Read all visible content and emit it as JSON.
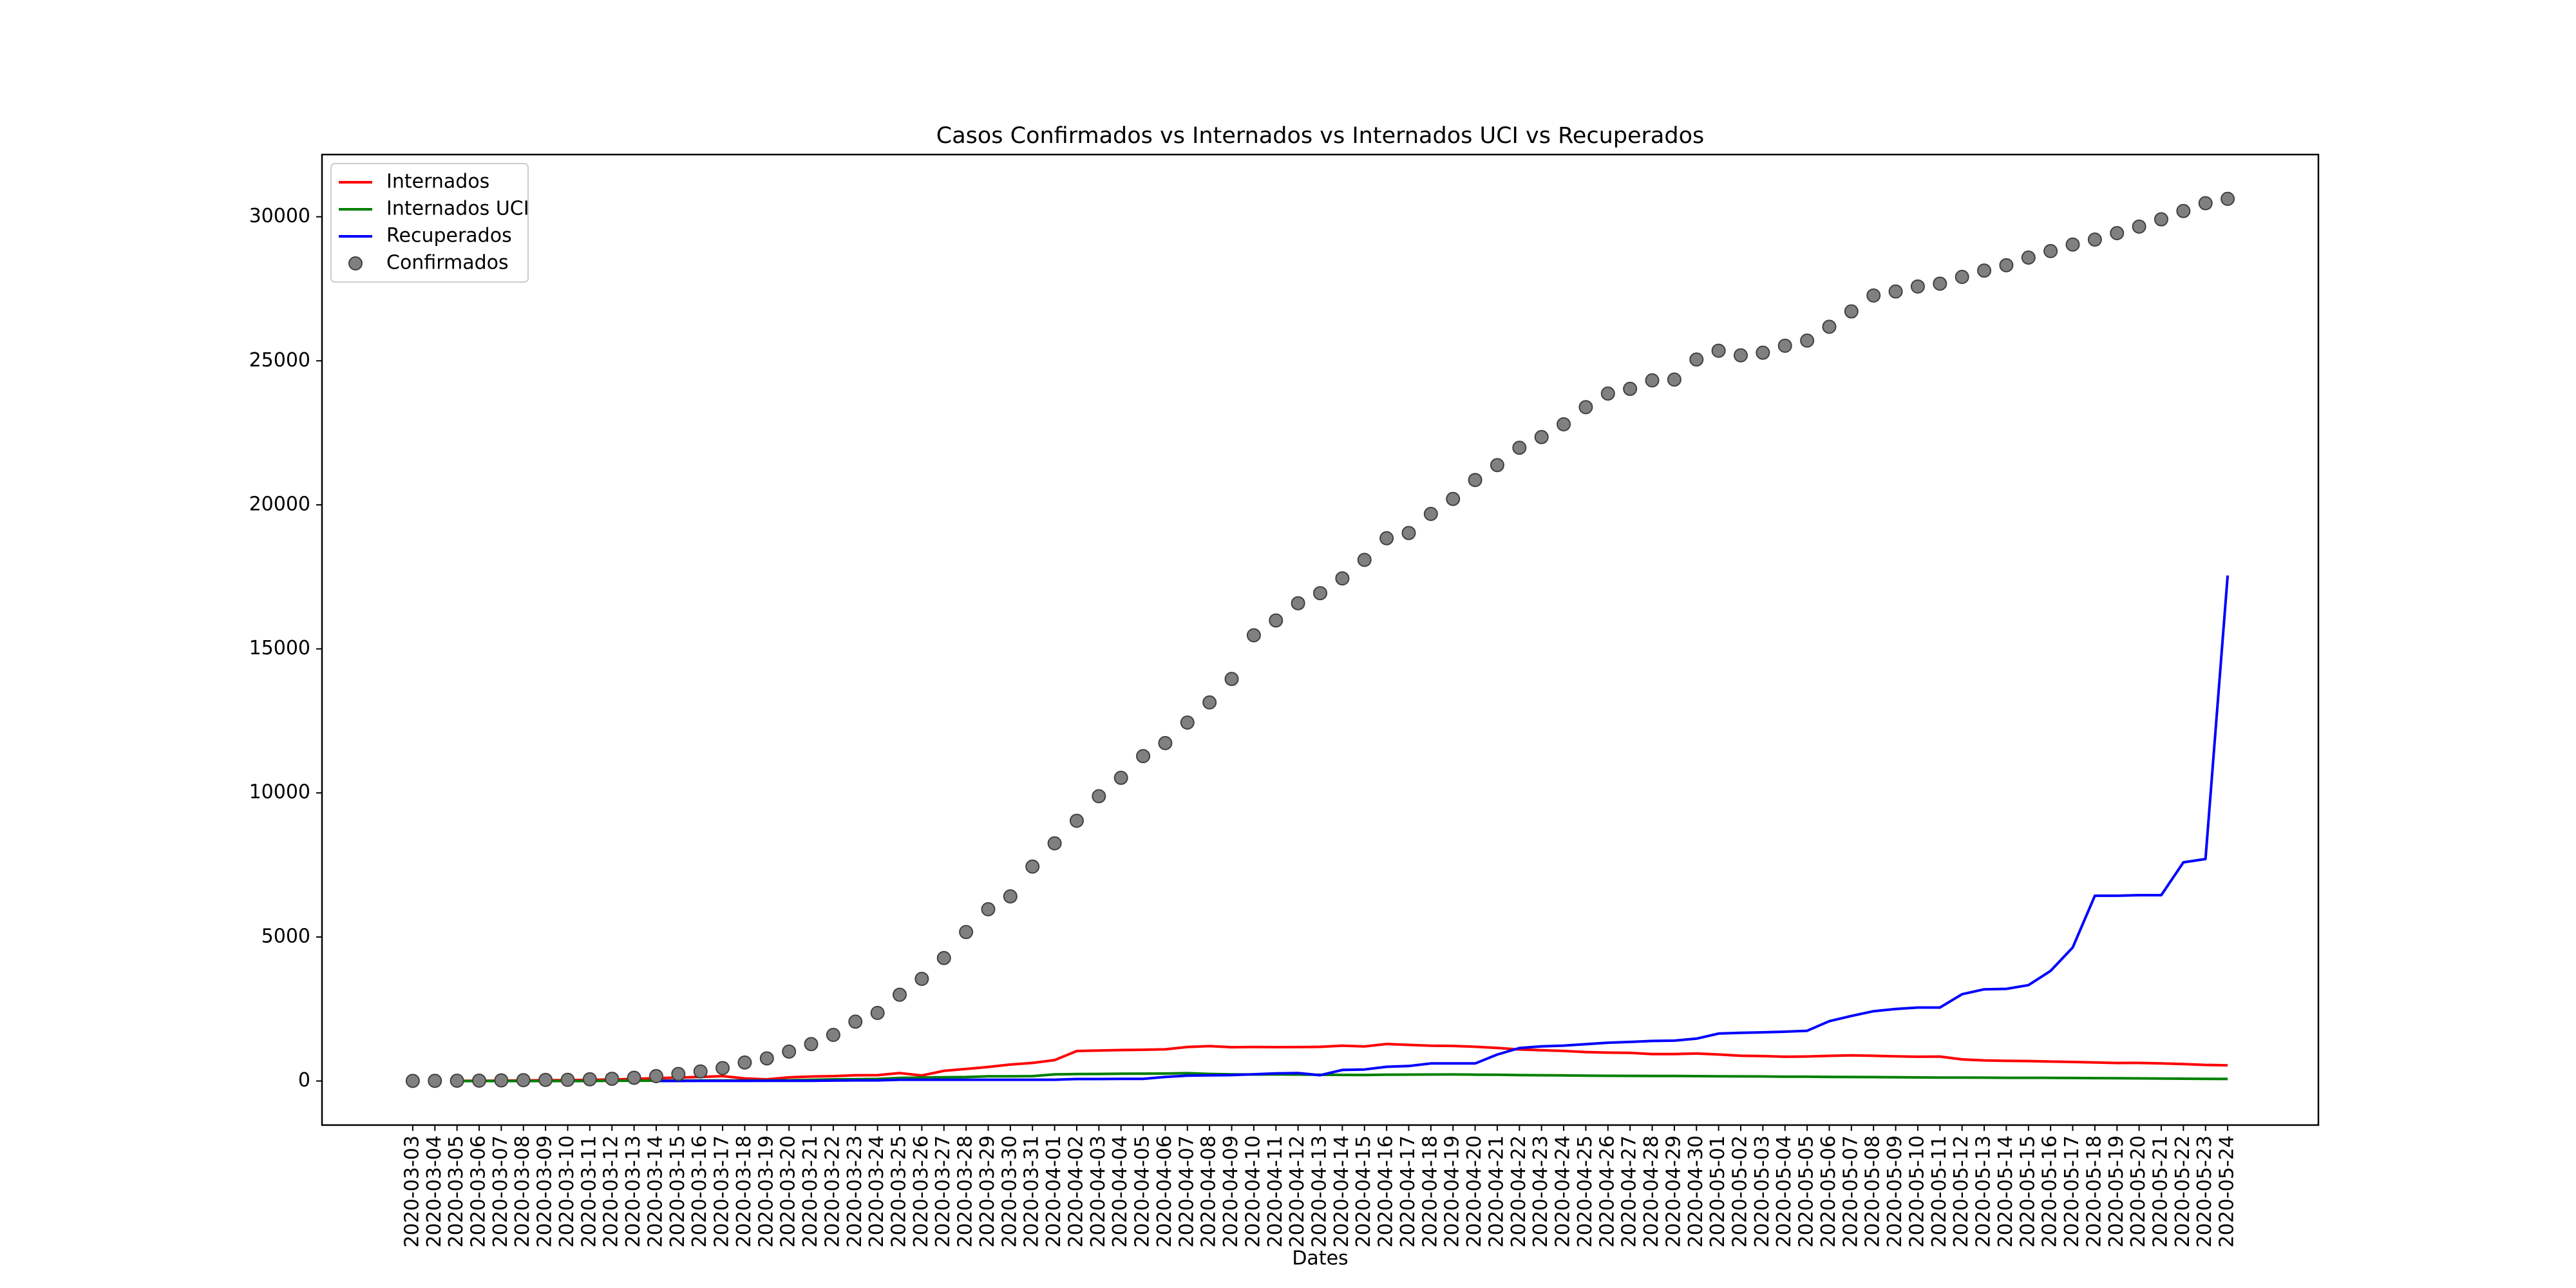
{
  "chart_data": {
    "type": "line",
    "title": "Casos Confirmados vs Internados  vs Internados UCI vs Recuperados",
    "x_label": "Dates",
    "categories": [
      "2020-03-03",
      "2020-03-04",
      "2020-03-05",
      "2020-03-06",
      "2020-03-07",
      "2020-03-08",
      "2020-03-09",
      "2020-03-10",
      "2020-03-11",
      "2020-03-12",
      "2020-03-13",
      "2020-03-14",
      "2020-03-15",
      "2020-03-16",
      "2020-03-17",
      "2020-03-18",
      "2020-03-19",
      "2020-03-20",
      "2020-03-21",
      "2020-03-22",
      "2020-03-23",
      "2020-03-24",
      "2020-03-25",
      "2020-03-26",
      "2020-03-27",
      "2020-03-28",
      "2020-03-29",
      "2020-03-30",
      "2020-03-31",
      "2020-04-01",
      "2020-04-02",
      "2020-04-03",
      "2020-04-04",
      "2020-04-05",
      "2020-04-06",
      "2020-04-07",
      "2020-04-08",
      "2020-04-09",
      "2020-04-10",
      "2020-04-11",
      "2020-04-12",
      "2020-04-13",
      "2020-04-14",
      "2020-04-15",
      "2020-04-16",
      "2020-04-17",
      "2020-04-18",
      "2020-04-19",
      "2020-04-20",
      "2020-04-21",
      "2020-04-22",
      "2020-04-23",
      "2020-04-24",
      "2020-04-25",
      "2020-04-26",
      "2020-04-27",
      "2020-04-28",
      "2020-04-29",
      "2020-04-30",
      "2020-05-01",
      "2020-05-02",
      "2020-05-03",
      "2020-05-04",
      "2020-05-05",
      "2020-05-06",
      "2020-05-07",
      "2020-05-08",
      "2020-05-09",
      "2020-05-10",
      "2020-05-11",
      "2020-05-12",
      "2020-05-13",
      "2020-05-14",
      "2020-05-15",
      "2020-05-16",
      "2020-05-17",
      "2020-05-18",
      "2020-05-19",
      "2020-05-20",
      "2020-05-21",
      "2020-05-22",
      "2020-05-23",
      "2020-05-24"
    ],
    "series": [
      {
        "name": "Internados",
        "color": "#ff0000",
        "kind": "line",
        "values": [
          null,
          null,
          5,
          8,
          13,
          20,
          25,
          30,
          40,
          50,
          70,
          100,
          120,
          140,
          170,
          89,
          58,
          126,
          156,
          169,
          201,
          203,
          276,
          191,
          353,
          418,
          486,
          571,
          627,
          726,
          1042,
          1058,
          1075,
          1084,
          1099,
          1180,
          1211,
          1173,
          1179,
          1175,
          1177,
          1187,
          1227,
          1200,
          1284,
          1253,
          1227,
          1218,
          1188,
          1147,
          1095,
          1068,
          1043,
          1005,
          985,
          975,
          935,
          934,
          954,
          920,
          875,
          865,
          842,
          850,
          874,
          891,
          875,
          856,
          842,
          848,
          750,
          715,
          699,
          693,
          674,
          660,
          646,
          626,
          628,
          609,
          589,
          557,
          545
        ]
      },
      {
        "name": "Internados UCI",
        "color": "#008000",
        "kind": "line",
        "values": [
          null,
          null,
          0,
          0,
          0,
          0,
          0,
          0,
          0,
          5,
          10,
          10,
          15,
          18,
          20,
          20,
          20,
          26,
          41,
          58,
          61,
          71,
          108,
          119,
          130,
          138,
          162,
          164,
          169,
          230,
          240,
          245,
          251,
          256,
          259,
          271,
          245,
          230,
          226,
          228,
          222,
          216,
          212,
          210,
          218,
          222,
          224,
          228,
          220,
          215,
          205,
          200,
          193,
          188,
          180,
          177,
          174,
          173,
          170,
          165,
          160,
          158,
          150,
          148,
          140,
          138,
          135,
          130,
          125,
          120,
          118,
          115,
          112,
          110,
          108,
          105,
          100,
          95,
          90,
          85,
          80,
          75,
          71
        ]
      },
      {
        "name": "Recuperados",
        "color": "#0000ff",
        "kind": "line",
        "values": [
          null,
          null,
          null,
          null,
          null,
          null,
          null,
          null,
          null,
          null,
          null,
          2,
          2,
          3,
          3,
          3,
          5,
          5,
          5,
          14,
          22,
          22,
          43,
          43,
          43,
          43,
          43,
          43,
          43,
          43,
          68,
          68,
          75,
          75,
          140,
          184,
          196,
          205,
          233,
          266,
          277,
          200,
          383,
          400,
          493,
          520,
          610,
          610,
          610,
          917,
          1143,
          1201,
          1228,
          1277,
          1329,
          1357,
          1389,
          1400,
          1470,
          1647,
          1671,
          1689,
          1712,
          1743,
          2076,
          2258,
          2422,
          2499,
          2549,
          2549,
          3013,
          3182,
          3198,
          3328,
          3822,
          4636,
          6430,
          6431,
          6452,
          6452,
          7590,
          7705,
          17549
        ]
      },
      {
        "name": "Confirmados",
        "color": "#808080",
        "kind": "scatter",
        "values": [
          4,
          6,
          9,
          13,
          21,
          30,
          39,
          41,
          59,
          78,
          112,
          169,
          245,
          331,
          448,
          642,
          785,
          1020,
          1280,
          1600,
          2060,
          2362,
          2995,
          3544,
          4268,
          5170,
          5962,
          6408,
          7443,
          8251,
          9034,
          9886,
          10524,
          11278,
          11730,
          12442,
          13141,
          13956,
          15472,
          15987,
          16585,
          16934,
          17448,
          18091,
          18841,
          19022,
          19685,
          20206,
          20863,
          21379,
          21982,
          22353,
          22797,
          23392,
          23864,
          24027,
          24322,
          24350,
          25045,
          25351,
          25190,
          25282,
          25524,
          25702,
          26182,
          26715,
          27268,
          27406,
          27581,
          27679,
          27913,
          28132,
          28319,
          28583,
          28810,
          29036,
          29209,
          29432,
          29660,
          29912,
          30200,
          30471,
          30623
        ]
      }
    ],
    "ylim": [
      -1530,
      32160
    ],
    "yticks": [
      0,
      5000,
      10000,
      15000,
      20000,
      25000,
      30000
    ],
    "legend": "upper left"
  }
}
